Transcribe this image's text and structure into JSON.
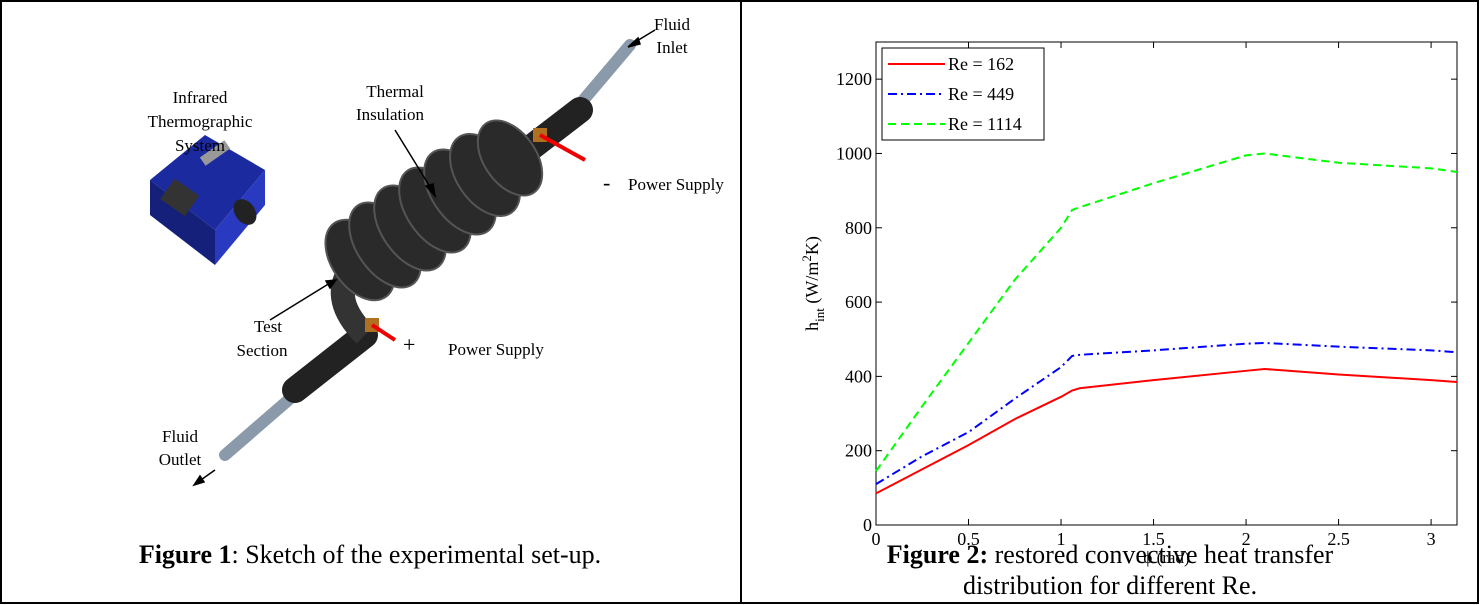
{
  "figure1": {
    "labels": {
      "fluid_inlet": [
        "Fluid",
        "Inlet"
      ],
      "thermal_insulation": [
        "Thermal",
        "Insulation"
      ],
      "camera": [
        "Infrared",
        "Thermographic",
        "System"
      ],
      "minus": "-",
      "power_supply_top": "Power Supply",
      "test_section": [
        "Test",
        "Section"
      ],
      "plus": "+",
      "power_supply_bottom": "Power Supply",
      "fluid_outlet": [
        "Fluid",
        "Outlet"
      ]
    },
    "caption_label": "Figure 1",
    "caption_text": ": Sketch of the experimental set-up."
  },
  "chart_data": {
    "type": "line",
    "x": [
      0,
      0.25,
      0.5,
      0.75,
      1,
      1.06,
      1.1,
      1.5,
      2,
      2.1,
      2.5,
      3,
      3.14
    ],
    "series": [
      {
        "name": "Re = 162",
        "color": "#ff0000",
        "dash": "solid",
        "values": [
          85,
          150,
          215,
          285,
          345,
          362,
          368,
          390,
          415,
          420,
          405,
          390,
          385
        ]
      },
      {
        "name": "Re = 449",
        "color": "#0000ff",
        "dash": "dashdot",
        "values": [
          110,
          185,
          250,
          340,
          425,
          455,
          458,
          470,
          488,
          490,
          480,
          470,
          465
        ]
      },
      {
        "name": "Re = 1114",
        "color": "#00ff00",
        "dash": "dashed",
        "values": [
          145,
          320,
          490,
          660,
          800,
          848,
          855,
          920,
          995,
          1000,
          975,
          960,
          950
        ]
      }
    ],
    "xlim": [
      0,
      3.14
    ],
    "ylim": [
      0,
      1300
    ],
    "xticks": [
      0,
      0.5,
      1,
      1.5,
      2,
      2.5,
      3
    ],
    "yticks": [
      0,
      200,
      400,
      600,
      800,
      1000,
      1200
    ],
    "xlabel": "ϕ (rad)",
    "ylabel": {
      "base": "h",
      "sub": "int",
      "unit": " (W/m",
      "sup": "2",
      "end": "K)"
    },
    "legend": "upper-left",
    "caption_label": "Figure 2:",
    "caption_lines": [
      " restored convective heat transfer",
      "distribution for different Re."
    ]
  }
}
